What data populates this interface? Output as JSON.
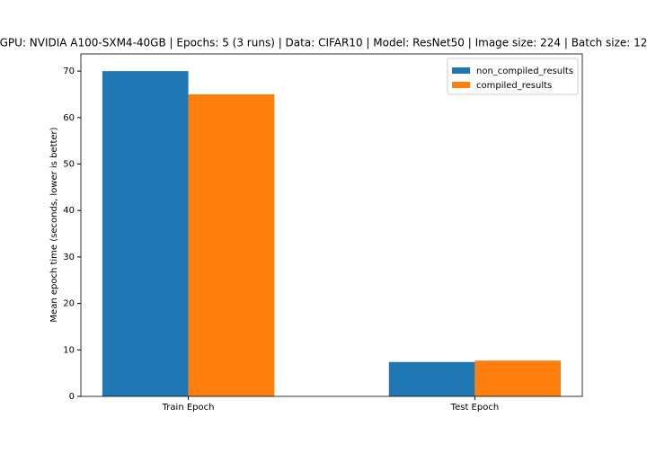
{
  "chart_data": {
    "type": "bar",
    "title": "GPU: NVIDIA A100-SXM4-40GB | Epochs: 5 (3 runs) | Data: CIFAR10 | Model: ResNet50 | Image size: 224 | Batch size: 12",
    "ylabel": "Mean epoch time (seconds, lower is better)",
    "categories": [
      "Train Epoch",
      "Test Epoch"
    ],
    "series": [
      {
        "name": "non_compiled_results",
        "color": "#1f77b4",
        "values": [
          70.0,
          7.4
        ]
      },
      {
        "name": "compiled_results",
        "color": "#ff7f0e",
        "values": [
          65.0,
          7.7
        ]
      }
    ],
    "ylim": [
      0,
      73.7
    ],
    "yticks": [
      0,
      10,
      20,
      30,
      40,
      50,
      60,
      70
    ],
    "legend": "upper right",
    "grid": false
  }
}
